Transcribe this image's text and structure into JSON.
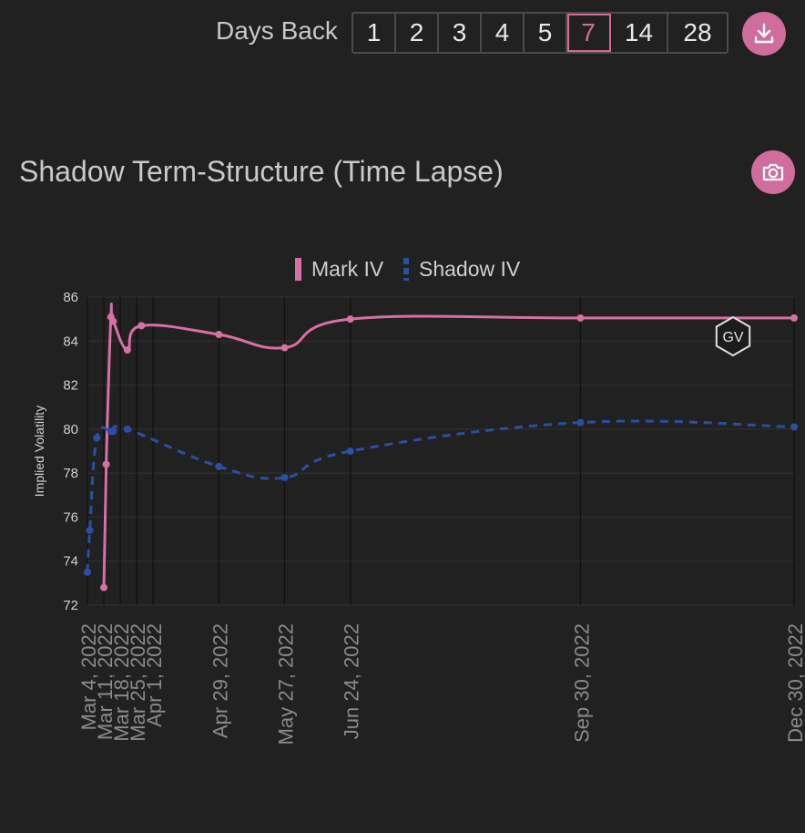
{
  "header": {
    "days_back_label": "Days Back",
    "days_options": [
      "1",
      "2",
      "3",
      "4",
      "5",
      "7",
      "14",
      "28"
    ],
    "days_selected": "7",
    "download_icon": "download-icon"
  },
  "chart_section": {
    "title": "Shadow Term-Structure (Time Lapse)",
    "camera_icon": "camera-icon",
    "watermark": "GV"
  },
  "colors": {
    "mark_iv": "#d770a4",
    "shadow_iv": "#2b4fa6",
    "accent": "#d06d9d",
    "background": "#212121"
  },
  "chart_data": {
    "type": "line",
    "title": "Shadow Term-Structure (Time Lapse)",
    "ylabel": "Implied Volatility",
    "xlabel": "",
    "ylim": [
      72,
      86
    ],
    "yticks": [
      72,
      74,
      76,
      78,
      80,
      82,
      84,
      86
    ],
    "grid": true,
    "legend_position": "top-center",
    "x_tick_labels": [
      "Mar 4, 2022",
      "Mar 11, 2022",
      "Mar 18, 2022",
      "Mar 25, 2022",
      "Apr 1, 2022",
      "Apr 29, 2022",
      "May 27, 2022",
      "Jun 24, 2022",
      "Sep 30, 2022",
      "Dec 30, 2022"
    ],
    "series": [
      {
        "name": "Mark IV",
        "style": "solid",
        "x": [
          "2022-03-11",
          "2022-03-12",
          "2022-03-14",
          "2022-03-15",
          "2022-03-21",
          "2022-03-27",
          "2022-04-29",
          "2022-05-27",
          "2022-06-24",
          "2022-09-30",
          "2022-12-30"
        ],
        "values": [
          72.8,
          78.4,
          85.1,
          84.9,
          83.6,
          84.7,
          84.3,
          83.7,
          85.0,
          85.05,
          85.05
        ]
      },
      {
        "name": "Shadow IV",
        "style": "dashed",
        "x": [
          "2022-03-04",
          "2022-03-05",
          "2022-03-08",
          "2022-03-14",
          "2022-03-15",
          "2022-03-21",
          "2022-04-29",
          "2022-05-27",
          "2022-06-24",
          "2022-09-30",
          "2022-12-30"
        ],
        "values": [
          73.5,
          75.4,
          79.6,
          79.9,
          79.9,
          80.0,
          78.3,
          77.8,
          79.0,
          80.3,
          80.1
        ]
      }
    ]
  }
}
